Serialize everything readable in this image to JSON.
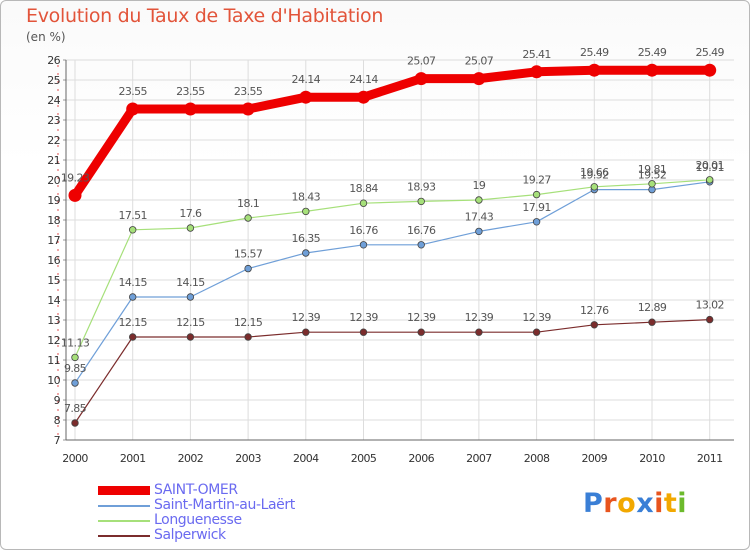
{
  "header": {
    "title": "Evolution du Taux de Taxe d'Habitation",
    "unit": "(en %)"
  },
  "logo": {
    "letters": [
      "P",
      "r",
      "o",
      "x",
      "i",
      "t",
      "i"
    ],
    "colors": [
      "#3a7fd6",
      "#e8541e",
      "#f2a800",
      "#3a7fd6",
      "#e8541e",
      "#f2a800",
      "#6cba2c"
    ]
  },
  "chart_data": {
    "type": "line",
    "categories": [
      "2000",
      "2001",
      "2002",
      "2003",
      "2004",
      "2005",
      "2006",
      "2007",
      "2008",
      "2009",
      "2010",
      "2011"
    ],
    "ylim": [
      7,
      26
    ],
    "yticks": [
      "7",
      "8",
      "9",
      "10",
      "11",
      "12",
      "13",
      "14",
      "15",
      "16",
      "17",
      "18",
      "19",
      "20",
      "21",
      "22",
      "23",
      "24",
      "25",
      "26"
    ],
    "grid": true,
    "legend_position": "bottom-left",
    "series": [
      {
        "name": "SAINT-OMER",
        "color": "#ee0000",
        "values": [
          19.23,
          23.55,
          23.55,
          23.55,
          24.14,
          24.14,
          25.07,
          25.07,
          25.41,
          25.49,
          25.49,
          25.49
        ],
        "labels": [
          "19.23",
          "23.55",
          "23.55",
          "23.55",
          "24.14",
          "24.14",
          "25.07",
          "25.07",
          "25.41",
          "25.49",
          "25.49",
          "25.49"
        ]
      },
      {
        "name": "Saint-Martin-au-Laërt",
        "color": "#6f9fd8",
        "values": [
          9.85,
          14.15,
          14.15,
          15.57,
          16.35,
          16.76,
          16.76,
          17.43,
          17.91,
          19.52,
          19.52,
          19.91
        ],
        "labels": [
          "9.85",
          "14.15",
          "14.15",
          "15.57",
          "16.35",
          "16.76",
          "16.76",
          "17.43",
          "17.91",
          "19.52",
          "19.52",
          "19.91"
        ]
      },
      {
        "name": "Longuenesse",
        "color": "#a6e07a",
        "values": [
          11.13,
          17.51,
          17.6,
          18.1,
          18.43,
          18.84,
          18.93,
          19,
          19.27,
          19.66,
          19.81,
          20.01
        ],
        "labels": [
          "11.13",
          "17.51",
          "17.6",
          "18.1",
          "18.43",
          "18.84",
          "18.93",
          "19",
          "19.27",
          "19.66",
          "19.81",
          "20.01"
        ]
      },
      {
        "name": "Salperwick",
        "color": "#7b2c2c",
        "values": [
          7.85,
          12.15,
          12.15,
          12.15,
          12.39,
          12.39,
          12.39,
          12.39,
          12.39,
          12.76,
          12.89,
          13.02
        ],
        "labels": [
          "7.85",
          "12.15",
          "12.15",
          "12.15",
          "12.39",
          "12.39",
          "12.39",
          "12.39",
          "12.39",
          "12.76",
          "12.89",
          "13.02"
        ]
      }
    ]
  }
}
